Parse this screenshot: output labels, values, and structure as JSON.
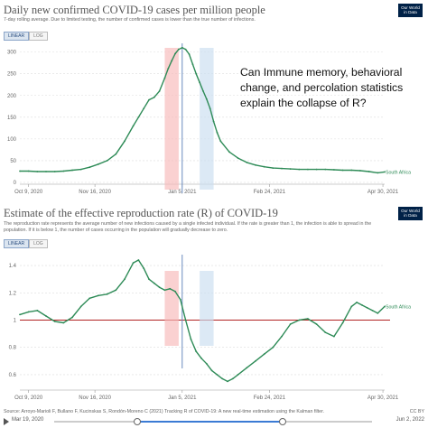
{
  "chart1": {
    "title": "Daily new confirmed COVID-19 cases per million people",
    "subtitle": "7-day rolling average. Due to limited testing, the number of confirmed cases is lower than the true number of infections.",
    "toggle": [
      "LINEAR",
      "LOG"
    ],
    "series_label": "South Africa"
  },
  "chart2": {
    "title": "Estimate of the effective reproduction rate (R) of COVID-19",
    "subtitle": "The reproduction rate represents the average number of new infections caused by a single infected individual. If the rate is greater than 1, the infection is able to spread in the population. If it is below 1, the number of cases occurring in the population will gradually decrease to zero.",
    "toggle": [
      "LINEAR",
      "LOG"
    ],
    "series_label": "South Africa"
  },
  "logo": [
    "Our World",
    "in Data"
  ],
  "annotation": "Can Immune memory, behavioral change, and percolation statistics explain the collapse of R?",
  "footer": {
    "source": "Source: Arroyo-Marioli F, Bullano F, Kucinskas S, Rondón-Moreno C (2021) Tracking R of COVID-19: A new real-time estimation using the Kalman filter.",
    "license": "CC BY"
  },
  "timeline": {
    "start": "Mar 19, 2020",
    "end": "Jun 2, 2022",
    "range_start_fraction": 0.26,
    "range_end_fraction": 0.72
  },
  "colors": {
    "line": "#2e8b57",
    "red_band": "#f7b8b8",
    "blue_band": "#c9ddef",
    "r1_line": "#b22222",
    "vline": "#6a8bbf"
  },
  "chart_data": [
    {
      "type": "line",
      "title": "Daily new confirmed COVID-19 cases per million people",
      "x_ticks": [
        "Oct 9, 2020",
        "Nov 16, 2020",
        "Jan 5, 2021",
        "Feb 24, 2021",
        "Apr 30, 2021"
      ],
      "x_tick_days": [
        0,
        38,
        88,
        138,
        203
      ],
      "xlim": [
        -5,
        204
      ],
      "ylim": [
        0,
        320
      ],
      "y_ticks": [
        0,
        50,
        100,
        150,
        200,
        250,
        300
      ],
      "series": [
        {
          "name": "South Africa",
          "x": [
            -5,
            0,
            5,
            10,
            15,
            20,
            25,
            30,
            35,
            40,
            45,
            50,
            55,
            60,
            63,
            66,
            69,
            72,
            75,
            78,
            80,
            82,
            84,
            86,
            88,
            90,
            92,
            94,
            96,
            98,
            100,
            102,
            104,
            106,
            108,
            110,
            115,
            120,
            125,
            130,
            135,
            140,
            145,
            150,
            155,
            160,
            165,
            170,
            175,
            180,
            185,
            190,
            195,
            200,
            204
          ],
          "y": [
            26,
            26,
            25,
            25,
            25,
            26,
            28,
            30,
            35,
            42,
            50,
            65,
            95,
            130,
            150,
            170,
            190,
            196,
            210,
            240,
            262,
            280,
            296,
            306,
            310,
            306,
            295,
            272,
            250,
            230,
            210,
            192,
            170,
            140,
            115,
            95,
            70,
            56,
            46,
            40,
            36,
            33,
            32,
            31,
            30,
            30,
            30,
            30,
            29,
            28,
            28,
            27,
            25,
            22,
            24
          ]
        }
      ],
      "bands": [
        {
          "start": 78,
          "end": 86,
          "color": "red"
        },
        {
          "start": 98,
          "end": 106,
          "color": "blue"
        }
      ],
      "vline_x": 88
    },
    {
      "type": "line",
      "title": "Estimate of the effective reproduction rate (R) of COVID-19",
      "x_ticks": [
        "Oct 9, 2020",
        "Nov 16, 2020",
        "Jan 5, 2021",
        "Feb 24, 2021",
        "Apr 30, 2021"
      ],
      "x_tick_days": [
        0,
        38,
        88,
        138,
        203
      ],
      "xlim": [
        -5,
        204
      ],
      "ylim": [
        0.5,
        1.48
      ],
      "y_ticks": [
        0.6,
        0.8,
        1,
        1.2,
        1.4
      ],
      "reference_line": 1,
      "series": [
        {
          "name": "South Africa",
          "x": [
            -5,
            0,
            5,
            10,
            15,
            20,
            25,
            30,
            35,
            40,
            45,
            50,
            55,
            60,
            63,
            66,
            69,
            72,
            75,
            78,
            81,
            84,
            87,
            90,
            93,
            96,
            99,
            102,
            105,
            108,
            111,
            114,
            117,
            120,
            125,
            130,
            135,
            140,
            145,
            150,
            155,
            160,
            165,
            170,
            175,
            180,
            185,
            188,
            191,
            194,
            197,
            200,
            204
          ],
          "y": [
            1.04,
            1.06,
            1.07,
            1.03,
            0.99,
            0.98,
            1.02,
            1.1,
            1.16,
            1.18,
            1.19,
            1.22,
            1.3,
            1.42,
            1.44,
            1.38,
            1.3,
            1.27,
            1.24,
            1.22,
            1.23,
            1.21,
            1.15,
            1.0,
            0.86,
            0.77,
            0.72,
            0.68,
            0.63,
            0.6,
            0.57,
            0.55,
            0.57,
            0.6,
            0.65,
            0.7,
            0.75,
            0.8,
            0.88,
            0.97,
            1.0,
            1.01,
            0.97,
            0.91,
            0.88,
            0.98,
            1.1,
            1.13,
            1.11,
            1.09,
            1.07,
            1.05,
            1.1
          ]
        }
      ],
      "bands": [
        {
          "start": 78,
          "end": 86,
          "color": "red"
        },
        {
          "start": 98,
          "end": 106,
          "color": "blue"
        }
      ],
      "vline_x": 88
    }
  ]
}
